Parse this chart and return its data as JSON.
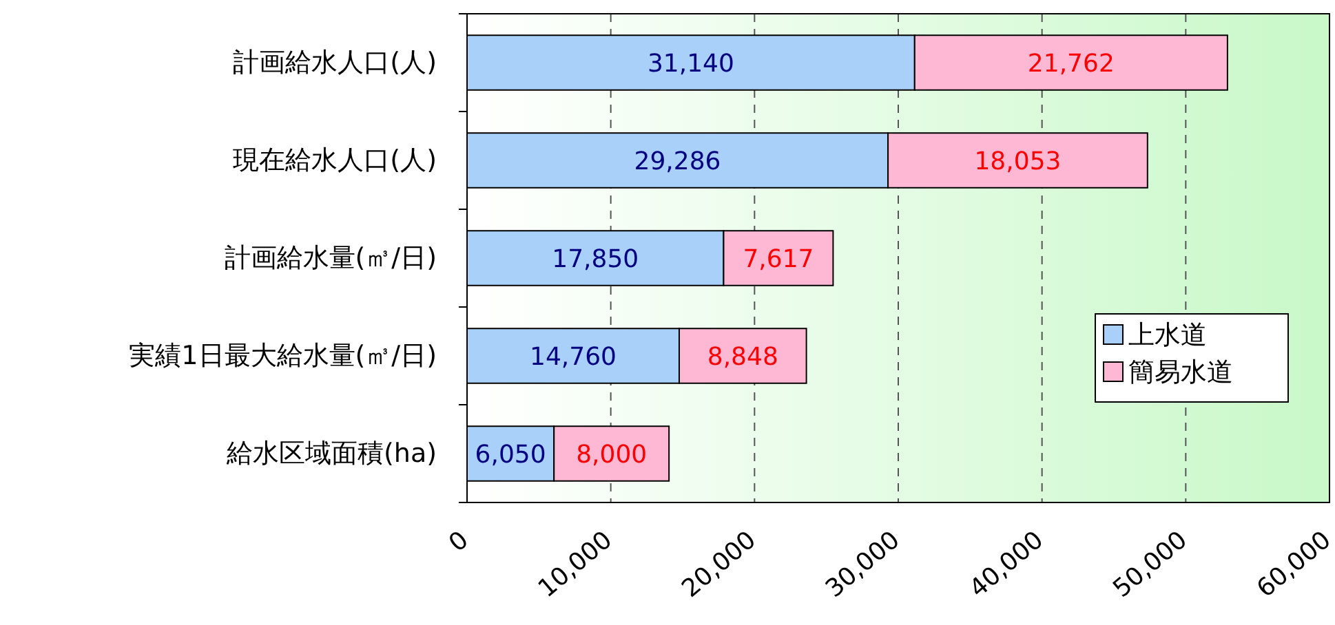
{
  "chart_data": {
    "type": "bar",
    "orientation": "horizontal",
    "stacked": true,
    "categories": [
      "計画給水人口(人)",
      "現在給水人口(人)",
      "計画給水量(㎥/日)",
      "実績1日最大給水量(㎥/日)",
      "給水区域面積(ha)"
    ],
    "series": [
      {
        "name": "上水道",
        "color": "#a8d0f8",
        "values": [
          31140,
          29286,
          17850,
          14760,
          6050
        ],
        "value_labels": [
          "31,140",
          "29,286",
          "17,850",
          "14,760",
          "6,050"
        ]
      },
      {
        "name": "簡易水道",
        "color": "#ffb8d4",
        "values": [
          21762,
          18053,
          7617,
          8848,
          8000
        ],
        "value_labels": [
          "21,762",
          "18,053",
          "7,617",
          "8,848",
          "8,000"
        ]
      }
    ],
    "xlim": [
      0,
      60000
    ],
    "xticks": [
      0,
      {
        "value": 10000,
        "label": "10,000"
      },
      {
        "value": 20000,
        "label": "20,000"
      },
      {
        "value": 30000,
        "label": "30,000"
      },
      {
        "value": 40000,
        "label": "40,000"
      },
      {
        "value": 50000,
        "label": "50,000"
      },
      {
        "value": 60000,
        "label": "60,000"
      }
    ],
    "grid": "x",
    "legend": "right"
  }
}
